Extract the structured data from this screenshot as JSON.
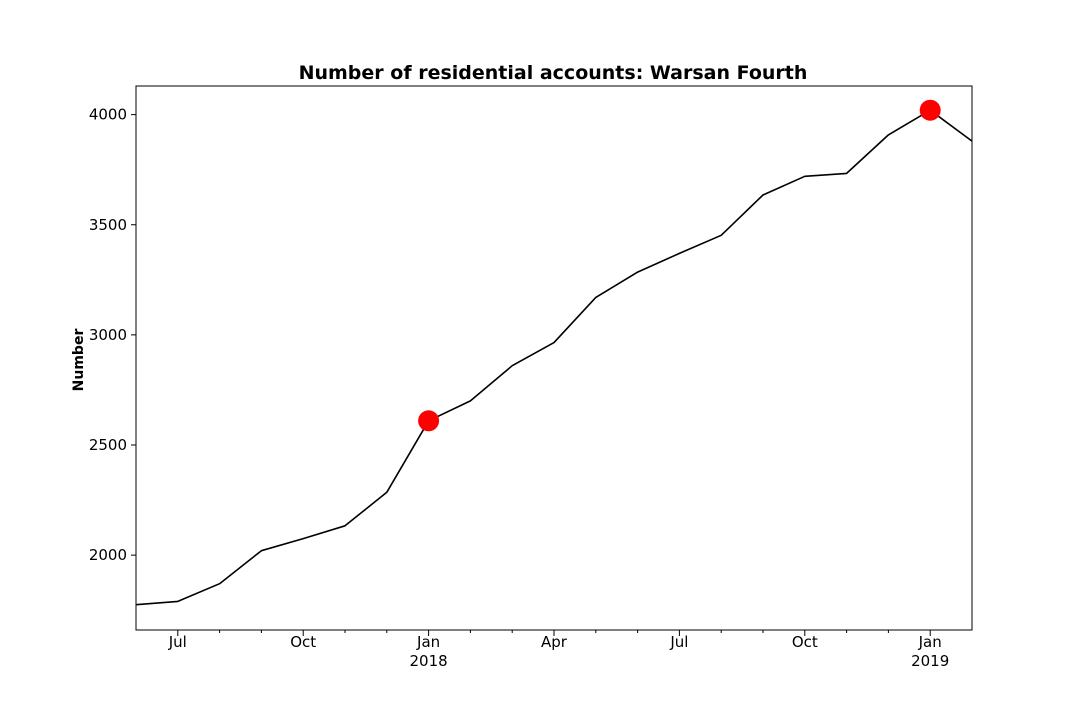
{
  "chart_data": {
    "type": "line",
    "title": "Number of residential accounts: Warsan Fourth",
    "xlabel": "",
    "ylabel": "Number",
    "x_range": [
      "2017-06",
      "2019-02"
    ],
    "ylim": [
      1660,
      4130
    ],
    "y_ticks": [
      2000,
      2500,
      3000,
      3500,
      4000
    ],
    "x_ticks": [
      {
        "month": "2017-07",
        "label": "Jul",
        "year": ""
      },
      {
        "month": "2017-10",
        "label": "Oct",
        "year": ""
      },
      {
        "month": "2018-01",
        "label": "Jan",
        "year": "2018"
      },
      {
        "month": "2018-04",
        "label": "Apr",
        "year": ""
      },
      {
        "month": "2018-07",
        "label": "Jul",
        "year": ""
      },
      {
        "month": "2018-10",
        "label": "Oct",
        "year": ""
      },
      {
        "month": "2019-01",
        "label": "Jan",
        "year": "2019"
      }
    ],
    "minor_ticks": [
      "2017-08",
      "2017-09",
      "2017-11",
      "2017-12",
      "2018-02",
      "2018-03",
      "2018-05",
      "2018-06",
      "2018-08",
      "2018-09",
      "2018-11",
      "2018-12"
    ],
    "series": [
      {
        "name": "Residential accounts",
        "color": "#000000",
        "x": [
          "2017-06",
          "2017-07",
          "2017-08",
          "2017-09",
          "2017-10",
          "2017-11",
          "2017-12",
          "2018-01",
          "2018-02",
          "2018-03",
          "2018-04",
          "2018-05",
          "2018-06",
          "2018-07",
          "2018-08",
          "2018-09",
          "2018-10",
          "2018-11",
          "2018-12",
          "2019-01",
          "2019-02"
        ],
        "y": [
          1775,
          1790,
          1870,
          2020,
          2075,
          2133,
          2285,
          2610,
          2700,
          2860,
          2965,
          3170,
          3285,
          3370,
          3452,
          3635,
          3720,
          3733,
          3908,
          4020,
          3880
        ]
      }
    ],
    "highlights": [
      {
        "x": "2018-01",
        "y": 2610,
        "color": "#ff0000"
      },
      {
        "x": "2019-01",
        "y": 4020,
        "color": "#ff0000"
      }
    ]
  }
}
